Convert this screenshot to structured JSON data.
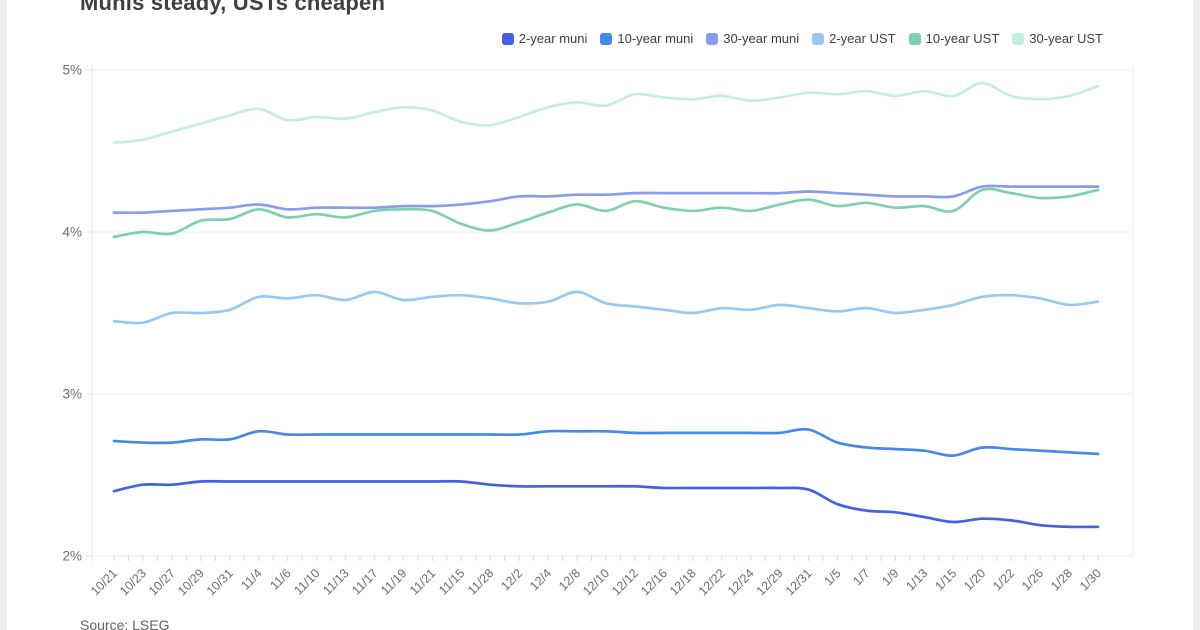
{
  "title": "Munis steady, USTs cheapen",
  "source_note": "Source: LSEG",
  "colors": {
    "title_text": "#3c4043",
    "axis_text": "#6d6d6d",
    "grid": "#ececec",
    "axis_line": "#e2e2e2",
    "tick": "#dcdcdc",
    "page_edge": "#f0f0f1"
  },
  "chart_data": {
    "type": "line",
    "title": "Munis steady, USTs cheapen",
    "x": [
      "10/21",
      "10/23",
      "10/27",
      "10/29",
      "10/31",
      "11/4",
      "11/6",
      "11/10",
      "11/13",
      "11/17",
      "11/19",
      "11/21",
      "11/15",
      "11/28",
      "12/2",
      "12/4",
      "12/8",
      "12/10",
      "12/12",
      "12/16",
      "12/18",
      "12/22",
      "12/24",
      "12/29",
      "12/31",
      "1/5",
      "1/7",
      "1/9",
      "1/13",
      "1/15",
      "1/20",
      "1/22",
      "1/26",
      "1/28",
      "1/30"
    ],
    "y_ticks": [
      "5%",
      "4%",
      "3%",
      "2%"
    ],
    "y_tick_values": [
      5,
      4,
      3,
      2
    ],
    "ylim": [
      2,
      5
    ],
    "grid": true,
    "legend_position": "top-right",
    "xlabel": "",
    "ylabel": "",
    "series": [
      {
        "name": "2-year muni",
        "color": "#4460e4",
        "values": [
          2.4,
          2.44,
          2.44,
          2.46,
          2.46,
          2.46,
          2.46,
          2.46,
          2.46,
          2.46,
          2.46,
          2.46,
          2.46,
          2.44,
          2.43,
          2.43,
          2.43,
          2.43,
          2.43,
          2.42,
          2.42,
          2.42,
          2.42,
          2.42,
          2.41,
          2.32,
          2.28,
          2.27,
          2.24,
          2.21,
          2.23,
          2.22,
          2.19,
          2.18,
          2.18
        ]
      },
      {
        "name": "10-year muni",
        "color": "#4689e6",
        "values": [
          2.71,
          2.7,
          2.7,
          2.72,
          2.72,
          2.77,
          2.75,
          2.75,
          2.75,
          2.75,
          2.75,
          2.75,
          2.75,
          2.75,
          2.75,
          2.77,
          2.77,
          2.77,
          2.76,
          2.76,
          2.76,
          2.76,
          2.76,
          2.76,
          2.78,
          2.7,
          2.67,
          2.66,
          2.65,
          2.62,
          2.67,
          2.66,
          2.65,
          2.64,
          2.63
        ]
      },
      {
        "name": "30-year muni",
        "color": "#8c9ceb",
        "values": [
          4.12,
          4.12,
          4.13,
          4.14,
          4.15,
          4.17,
          4.14,
          4.15,
          4.15,
          4.15,
          4.16,
          4.16,
          4.17,
          4.19,
          4.22,
          4.22,
          4.23,
          4.23,
          4.24,
          4.24,
          4.24,
          4.24,
          4.24,
          4.24,
          4.25,
          4.24,
          4.23,
          4.22,
          4.22,
          4.22,
          4.28,
          4.28,
          4.28,
          4.28,
          4.28
        ]
      },
      {
        "name": "2-year UST",
        "color": "#99c9f2",
        "values": [
          3.45,
          3.44,
          3.5,
          3.5,
          3.52,
          3.6,
          3.59,
          3.61,
          3.58,
          3.63,
          3.58,
          3.6,
          3.61,
          3.59,
          3.56,
          3.57,
          3.63,
          3.56,
          3.54,
          3.52,
          3.5,
          3.53,
          3.52,
          3.55,
          3.53,
          3.51,
          3.53,
          3.5,
          3.52,
          3.55,
          3.6,
          3.61,
          3.59,
          3.55,
          3.57
        ]
      },
      {
        "name": "10-year UST",
        "color": "#7fd1ae",
        "values": [
          3.97,
          4.0,
          3.99,
          4.07,
          4.08,
          4.14,
          4.09,
          4.11,
          4.09,
          4.13,
          4.14,
          4.13,
          4.05,
          4.01,
          4.06,
          4.12,
          4.17,
          4.13,
          4.19,
          4.15,
          4.13,
          4.15,
          4.13,
          4.17,
          4.2,
          4.16,
          4.18,
          4.15,
          4.16,
          4.13,
          4.26,
          4.24,
          4.21,
          4.22,
          4.26
        ]
      },
      {
        "name": "30-year UST",
        "color": "#c2f0db",
        "values": [
          4.55,
          4.57,
          4.62,
          4.67,
          4.72,
          4.76,
          4.69,
          4.71,
          4.7,
          4.74,
          4.77,
          4.75,
          4.68,
          4.66,
          4.71,
          4.77,
          4.8,
          4.78,
          4.85,
          4.83,
          4.82,
          4.84,
          4.81,
          4.83,
          4.86,
          4.85,
          4.87,
          4.84,
          4.87,
          4.84,
          4.92,
          4.84,
          4.82,
          4.84,
          4.9
        ]
      }
    ]
  }
}
